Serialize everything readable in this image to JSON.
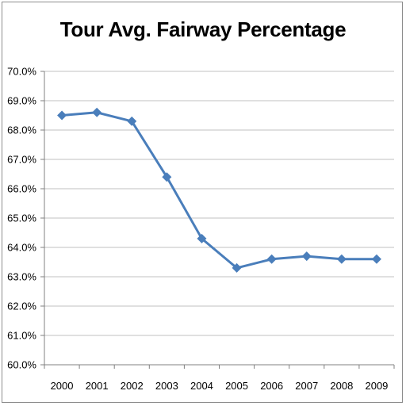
{
  "colors": {
    "series": "#4a7ebb",
    "grid": "#c0c0c0",
    "axis": "#808080"
  },
  "chart_data": {
    "type": "line",
    "title": "Tour Avg. Fairway Percentage",
    "xlabel": "",
    "ylabel": "",
    "categories": [
      "2000",
      "2001",
      "2002",
      "2003",
      "2004",
      "2005",
      "2006",
      "2007",
      "2008",
      "2009"
    ],
    "series": [
      {
        "marker": "diamond",
        "values": [
          68.5,
          68.6,
          68.3,
          66.4,
          64.3,
          63.3,
          63.6,
          63.7,
          63.6,
          63.6
        ]
      }
    ],
    "ylim": [
      60.0,
      70.0
    ],
    "y_ticks": [
      "60.0%",
      "61.0%",
      "62.0%",
      "63.0%",
      "64.0%",
      "65.0%",
      "66.0%",
      "67.0%",
      "68.0%",
      "69.0%",
      "70.0%"
    ],
    "grid": "horizontal",
    "legend": "none"
  }
}
